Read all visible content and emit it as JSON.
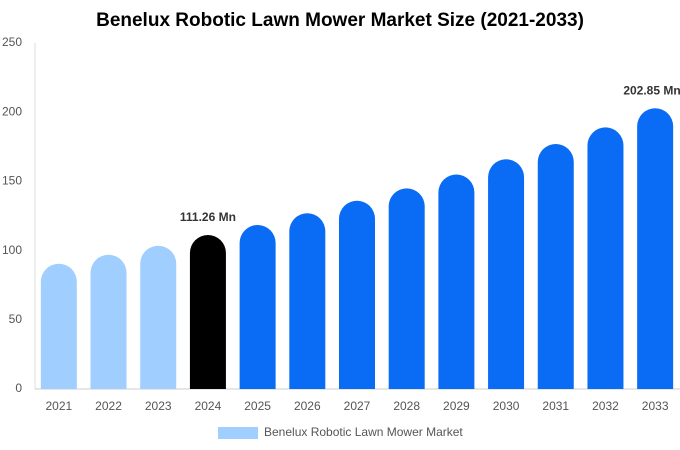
{
  "chart_data": {
    "type": "bar",
    "title": "Benelux Robotic Lawn Mower Market Size (2021-2033)",
    "categories": [
      "2021",
      "2022",
      "2023",
      "2024",
      "2025",
      "2026",
      "2027",
      "2028",
      "2029",
      "2030",
      "2031",
      "2032",
      "2033"
    ],
    "series": [
      {
        "name": "Benelux Robotic Lawn Mower Market",
        "color": "#a0cfff",
        "values": [
          90.5,
          97,
          103.5,
          111.26,
          118.5,
          127,
          136,
          145,
          155,
          166,
          177,
          189,
          202.85
        ],
        "value_labels": [
          null,
          null,
          null,
          "111.26 Mn",
          null,
          null,
          null,
          null,
          null,
          null,
          null,
          null,
          "202.85 Mn"
        ],
        "colors": [
          "#a0cfff",
          "#a0cfff",
          "#a0cfff",
          "#000000",
          "#0a6cf5",
          "#0a6cf5",
          "#0a6cf5",
          "#0a6cf5",
          "#0a6cf5",
          "#0a6cf5",
          "#0a6cf5",
          "#0a6cf5",
          "#0a6cf5"
        ]
      }
    ],
    "ylim": [
      0,
      250
    ],
    "yticks": [
      0,
      50,
      100,
      150,
      200,
      250
    ],
    "grid": false
  }
}
